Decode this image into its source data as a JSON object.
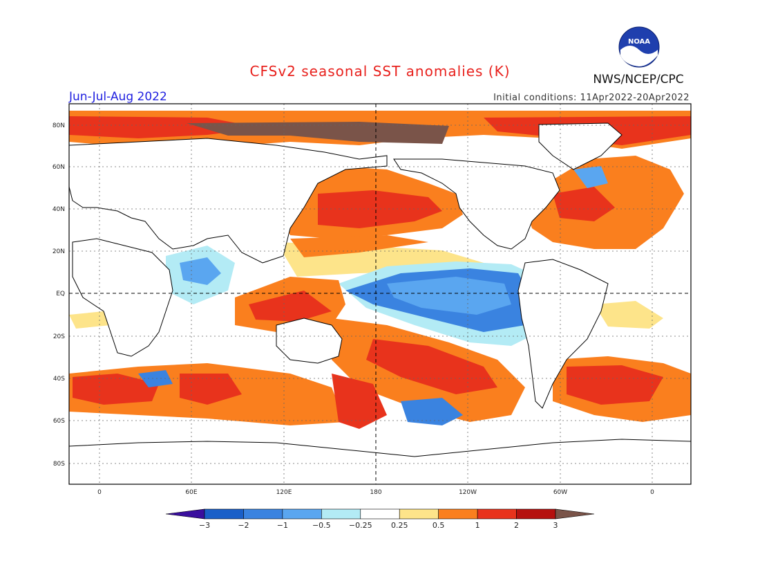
{
  "header": {
    "title": "CFSv2 seasonal SST anomalies (K)",
    "period": "Jun-Jul-Aug 2022",
    "initial_conditions": "Initial conditions: 11Apr2022-20Apr2022",
    "agency": "NWS/NCEP/CPC",
    "logo_text": "NOAA"
  },
  "axes": {
    "lat_ticks": [
      "80N",
      "60N",
      "40N",
      "20N",
      "EQ",
      "20S",
      "40S",
      "60S",
      "80S"
    ],
    "lon_ticks": [
      "0",
      "60E",
      "120E",
      "180",
      "120W",
      "60W",
      "0"
    ]
  },
  "colorbar": {
    "tick_labels": [
      "-3",
      "-2",
      "-1",
      "-0.5",
      "-0.25",
      "0.25",
      "0.5",
      "1",
      "2",
      "3"
    ],
    "colors": [
      "#3a0f9e",
      "#1a5fc8",
      "#3a83e0",
      "#5aa6f0",
      "#b3ebf5",
      "#ffffff",
      "#fde48a",
      "#fa7f1e",
      "#e8331c",
      "#b5110f",
      "#7a5449"
    ]
  },
  "map_colors": {
    "ocean_neutral": "#ffffff",
    "land": "#ffffff"
  }
}
